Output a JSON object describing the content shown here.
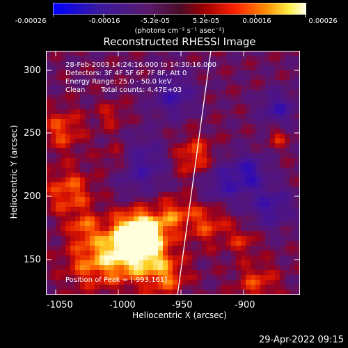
{
  "colorbar": {
    "tick_labels": [
      "-0.00026",
      "-0.00016",
      "-5.2e-05",
      "5.2e-05",
      "0.00016",
      "0.00026"
    ],
    "unit": "(photons cm⁻² s⁻¹ asec⁻²)",
    "range": [
      -0.00026,
      0.00026
    ]
  },
  "title": "Reconstructed RHESSI Image",
  "info": {
    "time_range": "28-Feb-2003 14:24:16.000 to 14:30:16.000",
    "detectors": "Detectors: 3F 4F 5F 6F 7F 8F, Att 0",
    "energy": "Energy Range: 25.0 - 50.0 keV",
    "algorithm": "Clean",
    "counts": "Total counts: 4.47E+03",
    "peak": "Position of Peak = [-993,161]"
  },
  "axes": {
    "xlabel": "Heliocentric X (arcsec)",
    "ylabel": "Heliocentric Y (arcsec)",
    "xticks": [
      "-1050",
      "-1000",
      "-950",
      "-900"
    ],
    "yticks": [
      "300",
      "250",
      "200",
      "150"
    ],
    "xrange": [
      -1068,
      -870
    ],
    "yrange": [
      122,
      315
    ]
  },
  "footer": {
    "timestamp": "29-Apr-2022 09:15"
  },
  "colors": {
    "background": "#000000",
    "text": "#ffffff",
    "limb": "#ffffff"
  }
}
